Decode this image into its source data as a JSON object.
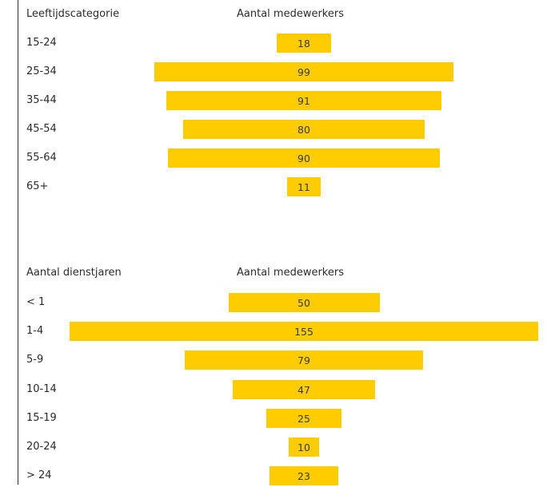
{
  "chart_data": [
    {
      "type": "bar",
      "orientation": "horizontal-centered",
      "category_header": "Leeftijdscategorie",
      "value_header": "Aantal medewerkers",
      "categories": [
        "15-24",
        "25-34",
        "35-44",
        "45-54",
        "55-64",
        "65+"
      ],
      "values": [
        18,
        99,
        91,
        80,
        90,
        11
      ],
      "bar_color": "#ffcc00"
    },
    {
      "type": "bar",
      "orientation": "horizontal-centered",
      "category_header": "Aantal dienstjaren",
      "value_header": "Aantal medewerkers",
      "categories": [
        "< 1",
        "1-4",
        "5-9",
        "10-14",
        "15-19",
        "20-24",
        "> 24"
      ],
      "values": [
        50,
        155,
        79,
        47,
        25,
        10,
        23
      ],
      "bar_color": "#ffcc00"
    }
  ]
}
